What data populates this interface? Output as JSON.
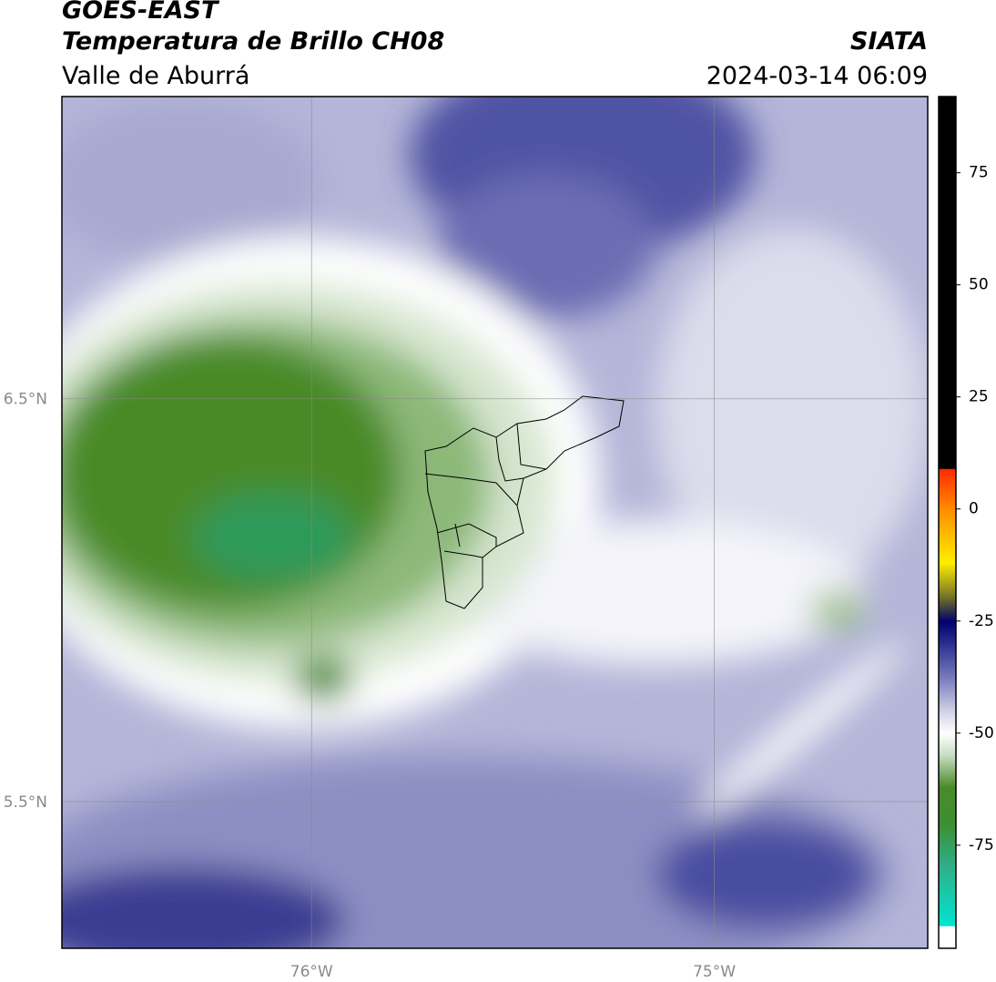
{
  "header": {
    "title": "GOES-EAST",
    "subtitle": "Temperatura de Brillo CH08",
    "region": "Valle de Aburrá",
    "agency": "SIATA",
    "timestamp": "2024-03-14 06:09"
  },
  "map": {
    "xlim": [
      -76.62,
      -74.47
    ],
    "ylim": [
      5.136,
      7.25
    ],
    "xticks": [
      {
        "value": -76,
        "label": "76°W"
      },
      {
        "value": -75,
        "label": "75°W"
      }
    ],
    "yticks": [
      {
        "value": 6.5,
        "label": "6.5°N"
      },
      {
        "value": 5.5,
        "label": "5.5°N"
      }
    ],
    "grid": true
  },
  "colorbar": {
    "lim": [
      -98,
      92
    ],
    "ticks": [
      75,
      50,
      25,
      0,
      -25,
      -50,
      -75
    ],
    "stops": [
      {
        "value": 92,
        "color": "#000000"
      },
      {
        "value": 9,
        "color": "#000000"
      },
      {
        "value": 8.9,
        "color": "#ff2a00"
      },
      {
        "value": 0,
        "color": "#ff8c00"
      },
      {
        "value": -12,
        "color": "#ffee00"
      },
      {
        "value": -20,
        "color": "#6b6b2a"
      },
      {
        "value": -25,
        "color": "#00006e"
      },
      {
        "value": -30,
        "color": "#2b2f8f"
      },
      {
        "value": -38,
        "color": "#7b7fbf"
      },
      {
        "value": -45,
        "color": "#cfd0e6"
      },
      {
        "value": -50,
        "color": "#ffffff"
      },
      {
        "value": -55,
        "color": "#c7dcc0"
      },
      {
        "value": -62,
        "color": "#4a8a2a"
      },
      {
        "value": -70,
        "color": "#3e8e30"
      },
      {
        "value": -80,
        "color": "#2fb08a"
      },
      {
        "value": -93,
        "color": "#00e5d0"
      },
      {
        "value": -93.1,
        "color": "#ffffff"
      },
      {
        "value": -98,
        "color": "#ffffff"
      }
    ]
  }
}
